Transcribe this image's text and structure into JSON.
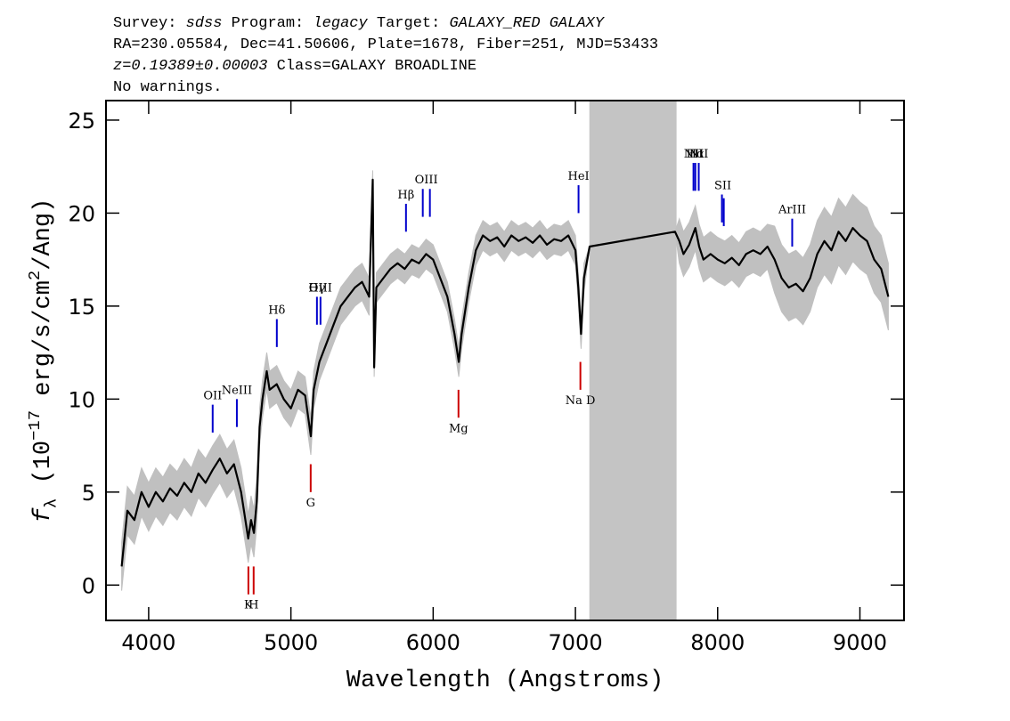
{
  "chart_data": {
    "type": "spectrum",
    "title_lines": [
      [
        {
          "text": "Survey: "
        },
        {
          "text": "sdss",
          "style": "italic"
        },
        {
          "text": " Program: "
        },
        {
          "text": "legacy",
          "style": "italic"
        },
        {
          "text": " Target: "
        },
        {
          "text": "GALAXY_RED GALAXY",
          "style": "italic"
        }
      ],
      [
        {
          "text": "RA=230.05584, Dec=41.50606, Plate=1678, Fiber=251, MJD=53433"
        }
      ],
      [
        {
          "text": "z=0.19389±0.00003",
          "style": "italic"
        },
        {
          "text": " Class=GALAXY BROADLINE"
        }
      ],
      [
        {
          "text": "No warnings."
        }
      ]
    ],
    "xlabel": "Wavelength (Angstroms)",
    "ylabel": [
      {
        "text": "f",
        "style": "italic"
      },
      {
        "text": "λ",
        "style": "sub"
      },
      {
        "text": " (10"
      },
      {
        "text": "−17",
        "style": "sup"
      },
      {
        "text": " erg/s/cm"
      },
      {
        "text": "2",
        "style": "sup"
      },
      {
        "text": "/Ang)"
      }
    ],
    "xlim": [
      3700,
      9310
    ],
    "ylim": [
      -1.9,
      26.05
    ],
    "xticks": [
      4000,
      5000,
      6000,
      7000,
      8000,
      9000
    ],
    "yticks": [
      0,
      5,
      10,
      15,
      20,
      25
    ],
    "color": "#000000",
    "error_color": "#c0c0c0",
    "mask": [
      7098,
      7711
    ],
    "mask_color": "#c4c4c4",
    "x": [
      3810,
      3850,
      3900,
      3950,
      4000,
      4050,
      4100,
      4150,
      4200,
      4250,
      4300,
      4350,
      4400,
      4450,
      4500,
      4550,
      4600,
      4650,
      4700,
      4720,
      4740,
      4760,
      4780,
      4800,
      4830,
      4850,
      4900,
      4950,
      5000,
      5050,
      5100,
      5140,
      5160,
      5200,
      5250,
      5300,
      5350,
      5400,
      5450,
      5500,
      5550,
      5575,
      5585,
      5600,
      5650,
      5700,
      5750,
      5800,
      5850,
      5900,
      5950,
      6000,
      6050,
      6100,
      6150,
      6180,
      6200,
      6250,
      6300,
      6350,
      6400,
      6450,
      6500,
      6550,
      6600,
      6650,
      6700,
      6750,
      6800,
      6850,
      6900,
      6950,
      7000,
      7020,
      7040,
      7060,
      7100,
      7700,
      7730,
      7760,
      7800,
      7843,
      7870,
      7900,
      7950,
      8000,
      8050,
      8100,
      8150,
      8200,
      8250,
      8300,
      8350,
      8400,
      8450,
      8500,
      8550,
      8600,
      8650,
      8700,
      8750,
      8800,
      8850,
      8900,
      8950,
      9000,
      9050,
      9100,
      9150,
      9200
    ],
    "values": [
      1.0,
      4.0,
      3.5,
      5.0,
      4.2,
      5.0,
      4.5,
      5.2,
      4.8,
      5.5,
      5.0,
      6.0,
      5.5,
      6.2,
      6.8,
      6.0,
      6.5,
      5.0,
      2.5,
      3.5,
      2.8,
      4.5,
      8.5,
      10.0,
      11.5,
      10.5,
      10.8,
      10.0,
      9.5,
      10.5,
      10.2,
      8.0,
      10.5,
      12.0,
      13.0,
      14.0,
      15.0,
      15.5,
      16.0,
      16.3,
      15.5,
      21.8,
      11.7,
      16.0,
      16.5,
      17.0,
      17.3,
      17.0,
      17.5,
      17.3,
      17.8,
      17.5,
      16.5,
      15.5,
      13.5,
      12.0,
      13.5,
      16.0,
      18.0,
      18.8,
      18.5,
      18.7,
      18.2,
      18.8,
      18.5,
      18.7,
      18.4,
      18.8,
      18.3,
      18.6,
      18.5,
      18.8,
      18.0,
      16.0,
      13.5,
      16.5,
      18.2,
      19.0,
      18.5,
      17.8,
      18.3,
      19.2,
      18.2,
      17.5,
      17.8,
      17.5,
      17.3,
      17.6,
      17.2,
      17.8,
      18.0,
      17.8,
      18.2,
      17.5,
      16.5,
      16.0,
      16.2,
      15.8,
      16.5,
      17.8,
      18.5,
      18.0,
      19.0,
      18.5,
      19.2,
      18.8,
      18.5,
      17.5,
      17.0,
      15.5
    ],
    "errors": [
      1.3,
      1.3,
      1.3,
      1.3,
      1.3,
      1.3,
      1.3,
      1.3,
      1.3,
      1.3,
      1.3,
      1.3,
      1.3,
      1.3,
      1.3,
      1.3,
      1.3,
      1.3,
      1.3,
      1.3,
      1.3,
      1.3,
      1.0,
      1.0,
      1.0,
      1.0,
      1.0,
      1.0,
      1.0,
      1.0,
      1.0,
      1.0,
      1.0,
      1.0,
      1.0,
      1.0,
      1.0,
      1.0,
      1.0,
      1.0,
      1.0,
      0.5,
      0.5,
      0.8,
      0.8,
      0.8,
      0.8,
      0.8,
      0.8,
      0.8,
      0.8,
      0.8,
      0.8,
      0.8,
      0.8,
      0.8,
      0.8,
      0.8,
      0.8,
      0.8,
      0.8,
      0.8,
      0.8,
      0.8,
      0.8,
      0.8,
      0.8,
      0.8,
      0.8,
      0.8,
      0.8,
      0.8,
      0.8,
      0.8,
      0.8,
      0.8,
      0,
      0,
      1.2,
      1.2,
      1.2,
      1.2,
      1.2,
      1.2,
      1.2,
      1.2,
      1.2,
      1.2,
      1.2,
      1.2,
      1.2,
      1.2,
      1.2,
      1.8,
      1.8,
      1.8,
      1.8,
      1.8,
      1.8,
      1.8,
      1.8,
      1.8,
      1.8,
      1.8,
      1.8,
      1.8,
      1.8,
      1.8,
      1.8,
      1.8
    ],
    "line_colors": {
      "emission": "#0000cc",
      "absorption": "#cc0000"
    },
    "spectral_lines": [
      {
        "label": "OII",
        "wavelengths": [
          4450
        ],
        "kind": "emission"
      },
      {
        "label": "NeIII",
        "wavelengths": [
          4620
        ],
        "kind": "emission"
      },
      {
        "label": "Hδ",
        "wavelengths": [
          4901
        ],
        "kind": "emission"
      },
      {
        "label": "Hγ",
        "wavelengths": [
          5183
        ],
        "kind": "emission"
      },
      {
        "label": "OIII",
        "wavelengths": [
          5208
        ],
        "kind": "emission"
      },
      {
        "label": "Hβ",
        "wavelengths": [
          5809
        ],
        "kind": "emission"
      },
      {
        "label": "OIII",
        "wavelengths": [
          5927,
          5977
        ],
        "kind": "emission"
      },
      {
        "label": "HeI",
        "wavelengths": [
          7022
        ],
        "kind": "emission"
      },
      {
        "label": "NII",
        "wavelengths": [
          7830
        ],
        "kind": "emission"
      },
      {
        "label": "Hα",
        "wavelengths": [
          7843
        ],
        "kind": "emission"
      },
      {
        "label": "NII",
        "wavelengths": [
          7867
        ],
        "kind": "emission"
      },
      {
        "label": "SII",
        "wavelengths": [
          8030,
          8043
        ],
        "kind": "emission"
      },
      {
        "label": "ArIII",
        "wavelengths": [
          8524
        ],
        "kind": "emission"
      },
      {
        "label": "K",
        "wavelengths": [
          4701
        ],
        "kind": "absorption"
      },
      {
        "label": "H",
        "wavelengths": [
          4738
        ],
        "kind": "absorption"
      },
      {
        "label": "G",
        "wavelengths": [
          5139
        ],
        "kind": "absorption"
      },
      {
        "label": "Mg",
        "wavelengths": [
          6178
        ],
        "kind": "absorption"
      },
      {
        "label": "Na D",
        "wavelengths": [
          7035
        ],
        "kind": "absorption"
      }
    ]
  }
}
